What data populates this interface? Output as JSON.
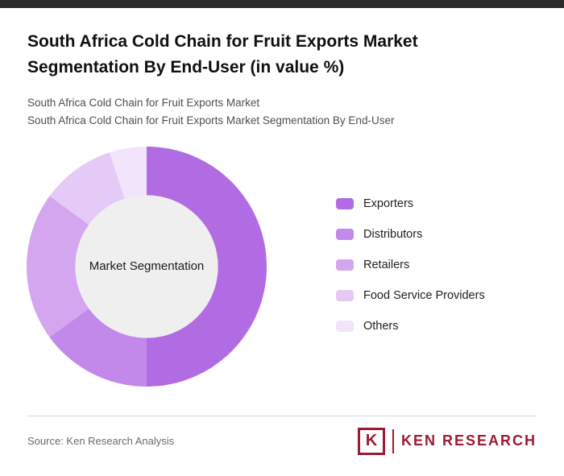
{
  "page": {
    "title": "South Africa Cold Chain for Fruit Exports Market Segmentation By End-User (in value %)",
    "subtitle1": "South Africa Cold Chain for Fruit Exports Market",
    "subtitle2": "South Africa Cold Chain for Fruit Exports Market Segmentation By End-User"
  },
  "chart_data": {
    "type": "pie",
    "subtype": "donut",
    "title": "South Africa Cold Chain for Fruit Exports Market Segmentation By End-User (in value %)",
    "center_label": "Market Segmentation",
    "unit": "value %",
    "legend_position": "right",
    "hole_color": "#efefef",
    "series": [
      {
        "name": "Exporters",
        "value": 50,
        "color": "#b26ce3"
      },
      {
        "name": "Distributors",
        "value": 15,
        "color": "#c288ea"
      },
      {
        "name": "Retailers",
        "value": 20,
        "color": "#d4a6f0"
      },
      {
        "name": "Food Service Providers",
        "value": 10,
        "color": "#e5c9f7"
      },
      {
        "name": "Others",
        "value": 5,
        "color": "#f2e4fb"
      }
    ]
  },
  "footer": {
    "source": "Source: Ken Research Analysis",
    "logo": {
      "letter": "K",
      "text": "KEN RESEARCH",
      "color": "#9c1b33"
    }
  }
}
